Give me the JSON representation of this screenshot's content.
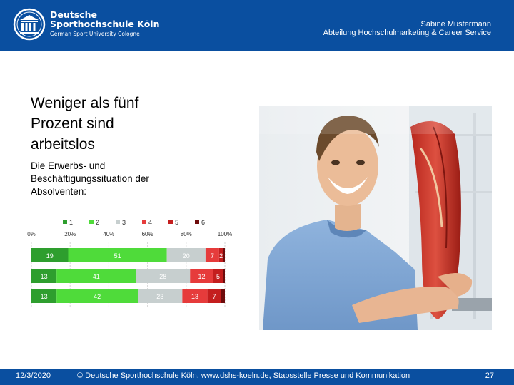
{
  "header": {
    "brand_line1": "Deutsche",
    "brand_line2": "Sporthochschule Köln",
    "brand_line3": "German Sport University Cologne",
    "author": "Sabine Mustermann",
    "department": "Abteilung Hochschulmarketing & Career Service",
    "color": "#0a4fa0"
  },
  "slide": {
    "title_line1": "Weniger als fünf",
    "title_line2": "Prozent sind",
    "title_line3": "arbeitslos",
    "subtitle_line1": "Die Erwerbs- und",
    "subtitle_line2": "Beschäftigungssituation der",
    "subtitle_line3": "Absolventen:"
  },
  "chart_data": {
    "type": "bar",
    "orientation": "horizontal-stacked-percent",
    "legend_position": "top",
    "series_names": [
      "1",
      "2",
      "3",
      "4",
      "5",
      "6"
    ],
    "colors": [
      "#2e9e2e",
      "#4fdb3a",
      "#c7cfcf",
      "#e63b3b",
      "#c41e1e",
      "#6e0c0c"
    ],
    "x_ticks": [
      "0%",
      "20%",
      "40%",
      "60%",
      "80%",
      "100%"
    ],
    "xlim": [
      0,
      100
    ],
    "rows": [
      {
        "values": [
          19,
          51,
          20,
          7,
          2,
          1
        ],
        "labels": [
          "19",
          "51",
          "20",
          "7",
          "2",
          ""
        ]
      },
      {
        "values": [
          13,
          41,
          28,
          12,
          5,
          1
        ],
        "labels": [
          "13",
          "41",
          "28",
          "12",
          "5",
          ""
        ]
      },
      {
        "values": [
          13,
          42,
          23,
          13,
          7,
          2
        ],
        "labels": [
          "13",
          "42",
          "23",
          "13",
          "7",
          ""
        ]
      }
    ]
  },
  "photo": {
    "description_icon": "anatomy-model-photo"
  },
  "footer": {
    "date": "12/3/2020",
    "copyright": "© Deutsche Sporthochschule Köln, www.dshs-koeln.de, Stabsstelle Presse und Kommunikation",
    "page_number": "27"
  }
}
